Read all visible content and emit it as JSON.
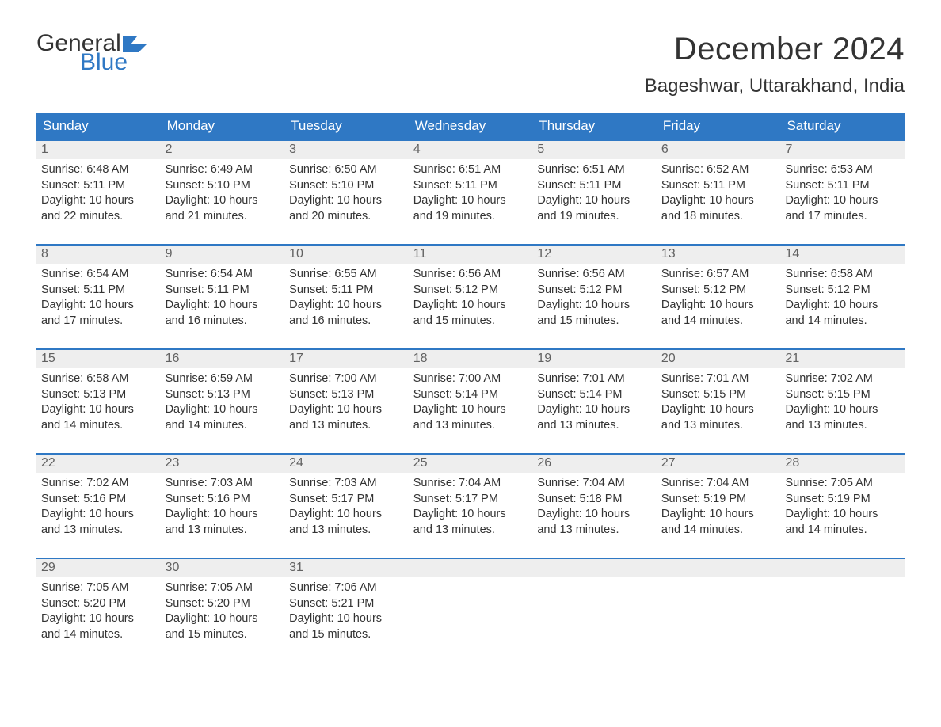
{
  "logo": {
    "text_general": "General",
    "text_blue": "Blue",
    "flag_color": "#2f78c4"
  },
  "title": "December 2024",
  "location": "Bageshwar, Uttarakhand, India",
  "colors": {
    "header_bg": "#2f78c4",
    "header_text": "#ffffff",
    "daynum_bg": "#eeeeee",
    "daynum_text": "#616161",
    "body_text": "#333333",
    "week_divider": "#2f78c4",
    "page_bg": "#ffffff"
  },
  "typography": {
    "title_fontsize": 40,
    "location_fontsize": 24,
    "weekday_fontsize": 17,
    "daynum_fontsize": 16,
    "info_fontsize": 14.5
  },
  "layout": {
    "columns": 7,
    "rows": 5
  },
  "weekdays": [
    "Sunday",
    "Monday",
    "Tuesday",
    "Wednesday",
    "Thursday",
    "Friday",
    "Saturday"
  ],
  "weeks": [
    [
      {
        "day": 1,
        "sunrise": "6:48 AM",
        "sunset": "5:11 PM",
        "daylight": "10 hours and 22 minutes."
      },
      {
        "day": 2,
        "sunrise": "6:49 AM",
        "sunset": "5:10 PM",
        "daylight": "10 hours and 21 minutes."
      },
      {
        "day": 3,
        "sunrise": "6:50 AM",
        "sunset": "5:10 PM",
        "daylight": "10 hours and 20 minutes."
      },
      {
        "day": 4,
        "sunrise": "6:51 AM",
        "sunset": "5:11 PM",
        "daylight": "10 hours and 19 minutes."
      },
      {
        "day": 5,
        "sunrise": "6:51 AM",
        "sunset": "5:11 PM",
        "daylight": "10 hours and 19 minutes."
      },
      {
        "day": 6,
        "sunrise": "6:52 AM",
        "sunset": "5:11 PM",
        "daylight": "10 hours and 18 minutes."
      },
      {
        "day": 7,
        "sunrise": "6:53 AM",
        "sunset": "5:11 PM",
        "daylight": "10 hours and 17 minutes."
      }
    ],
    [
      {
        "day": 8,
        "sunrise": "6:54 AM",
        "sunset": "5:11 PM",
        "daylight": "10 hours and 17 minutes."
      },
      {
        "day": 9,
        "sunrise": "6:54 AM",
        "sunset": "5:11 PM",
        "daylight": "10 hours and 16 minutes."
      },
      {
        "day": 10,
        "sunrise": "6:55 AM",
        "sunset": "5:11 PM",
        "daylight": "10 hours and 16 minutes."
      },
      {
        "day": 11,
        "sunrise": "6:56 AM",
        "sunset": "5:12 PM",
        "daylight": "10 hours and 15 minutes."
      },
      {
        "day": 12,
        "sunrise": "6:56 AM",
        "sunset": "5:12 PM",
        "daylight": "10 hours and 15 minutes."
      },
      {
        "day": 13,
        "sunrise": "6:57 AM",
        "sunset": "5:12 PM",
        "daylight": "10 hours and 14 minutes."
      },
      {
        "day": 14,
        "sunrise": "6:58 AM",
        "sunset": "5:12 PM",
        "daylight": "10 hours and 14 minutes."
      }
    ],
    [
      {
        "day": 15,
        "sunrise": "6:58 AM",
        "sunset": "5:13 PM",
        "daylight": "10 hours and 14 minutes."
      },
      {
        "day": 16,
        "sunrise": "6:59 AM",
        "sunset": "5:13 PM",
        "daylight": "10 hours and 14 minutes."
      },
      {
        "day": 17,
        "sunrise": "7:00 AM",
        "sunset": "5:13 PM",
        "daylight": "10 hours and 13 minutes."
      },
      {
        "day": 18,
        "sunrise": "7:00 AM",
        "sunset": "5:14 PM",
        "daylight": "10 hours and 13 minutes."
      },
      {
        "day": 19,
        "sunrise": "7:01 AM",
        "sunset": "5:14 PM",
        "daylight": "10 hours and 13 minutes."
      },
      {
        "day": 20,
        "sunrise": "7:01 AM",
        "sunset": "5:15 PM",
        "daylight": "10 hours and 13 minutes."
      },
      {
        "day": 21,
        "sunrise": "7:02 AM",
        "sunset": "5:15 PM",
        "daylight": "10 hours and 13 minutes."
      }
    ],
    [
      {
        "day": 22,
        "sunrise": "7:02 AM",
        "sunset": "5:16 PM",
        "daylight": "10 hours and 13 minutes."
      },
      {
        "day": 23,
        "sunrise": "7:03 AM",
        "sunset": "5:16 PM",
        "daylight": "10 hours and 13 minutes."
      },
      {
        "day": 24,
        "sunrise": "7:03 AM",
        "sunset": "5:17 PM",
        "daylight": "10 hours and 13 minutes."
      },
      {
        "day": 25,
        "sunrise": "7:04 AM",
        "sunset": "5:17 PM",
        "daylight": "10 hours and 13 minutes."
      },
      {
        "day": 26,
        "sunrise": "7:04 AM",
        "sunset": "5:18 PM",
        "daylight": "10 hours and 13 minutes."
      },
      {
        "day": 27,
        "sunrise": "7:04 AM",
        "sunset": "5:19 PM",
        "daylight": "10 hours and 14 minutes."
      },
      {
        "day": 28,
        "sunrise": "7:05 AM",
        "sunset": "5:19 PM",
        "daylight": "10 hours and 14 minutes."
      }
    ],
    [
      {
        "day": 29,
        "sunrise": "7:05 AM",
        "sunset": "5:20 PM",
        "daylight": "10 hours and 14 minutes."
      },
      {
        "day": 30,
        "sunrise": "7:05 AM",
        "sunset": "5:20 PM",
        "daylight": "10 hours and 15 minutes."
      },
      {
        "day": 31,
        "sunrise": "7:06 AM",
        "sunset": "5:21 PM",
        "daylight": "10 hours and 15 minutes."
      },
      null,
      null,
      null,
      null
    ]
  ],
  "labels": {
    "sunrise_prefix": "Sunrise: ",
    "sunset_prefix": "Sunset: ",
    "daylight_prefix": "Daylight: "
  }
}
